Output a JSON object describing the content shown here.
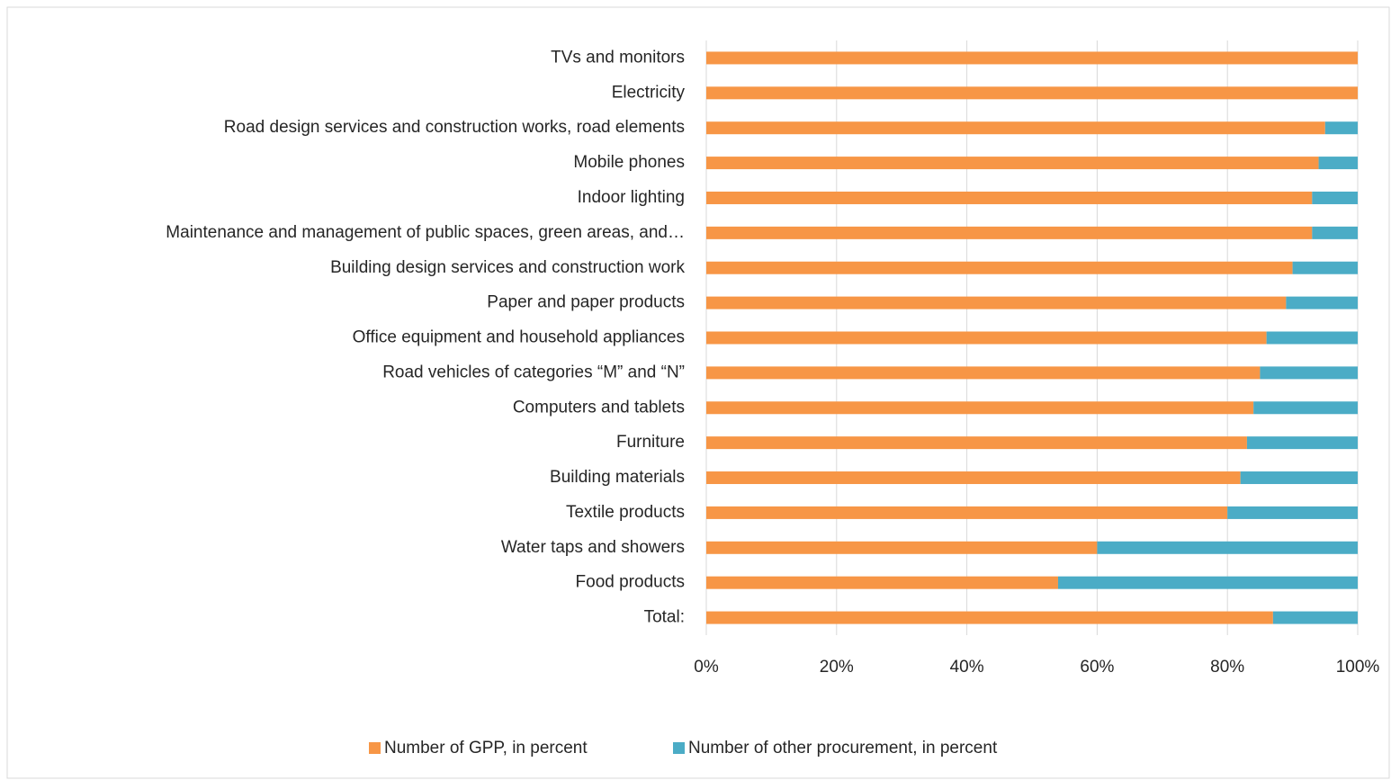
{
  "chart_data": {
    "type": "stacked_bar_horizontal",
    "categories": [
      "TVs and monitors",
      "Electricity",
      "Road design services and construction works, road elements",
      "Mobile phones",
      "Indoor lighting",
      "Maintenance and management of public spaces, green areas, and…",
      "Building design services and construction work",
      "Paper and paper products",
      "Office equipment and household appliances",
      "Road vehicles of categories “M” and “N”",
      "Computers and tablets",
      "Furniture",
      "Building materials",
      "Textile products",
      "Water taps and showers",
      "Food products",
      "Total:"
    ],
    "series": [
      {
        "name": "Number of GPP, in percent",
        "color": "#f79646",
        "values": [
          100,
          100,
          95,
          94,
          93,
          93,
          90,
          89,
          86,
          85,
          84,
          83,
          82,
          80,
          60,
          54,
          87
        ]
      },
      {
        "name": "Number of other procurement, in percent",
        "color": "#4bacc6",
        "values": [
          0,
          0,
          5,
          6,
          7,
          7,
          10,
          11,
          14,
          15,
          16,
          17,
          18,
          20,
          40,
          46,
          13
        ]
      }
    ],
    "xlim": [
      0,
      100
    ],
    "xticks": [
      {
        "value": 0,
        "label": "0%"
      },
      {
        "value": 20,
        "label": "20%"
      },
      {
        "value": 40,
        "label": "40%"
      },
      {
        "value": 60,
        "label": "60%"
      },
      {
        "value": 80,
        "label": "80%"
      },
      {
        "value": 100,
        "label": "100%"
      }
    ],
    "grid": true,
    "legend": "bottom"
  }
}
